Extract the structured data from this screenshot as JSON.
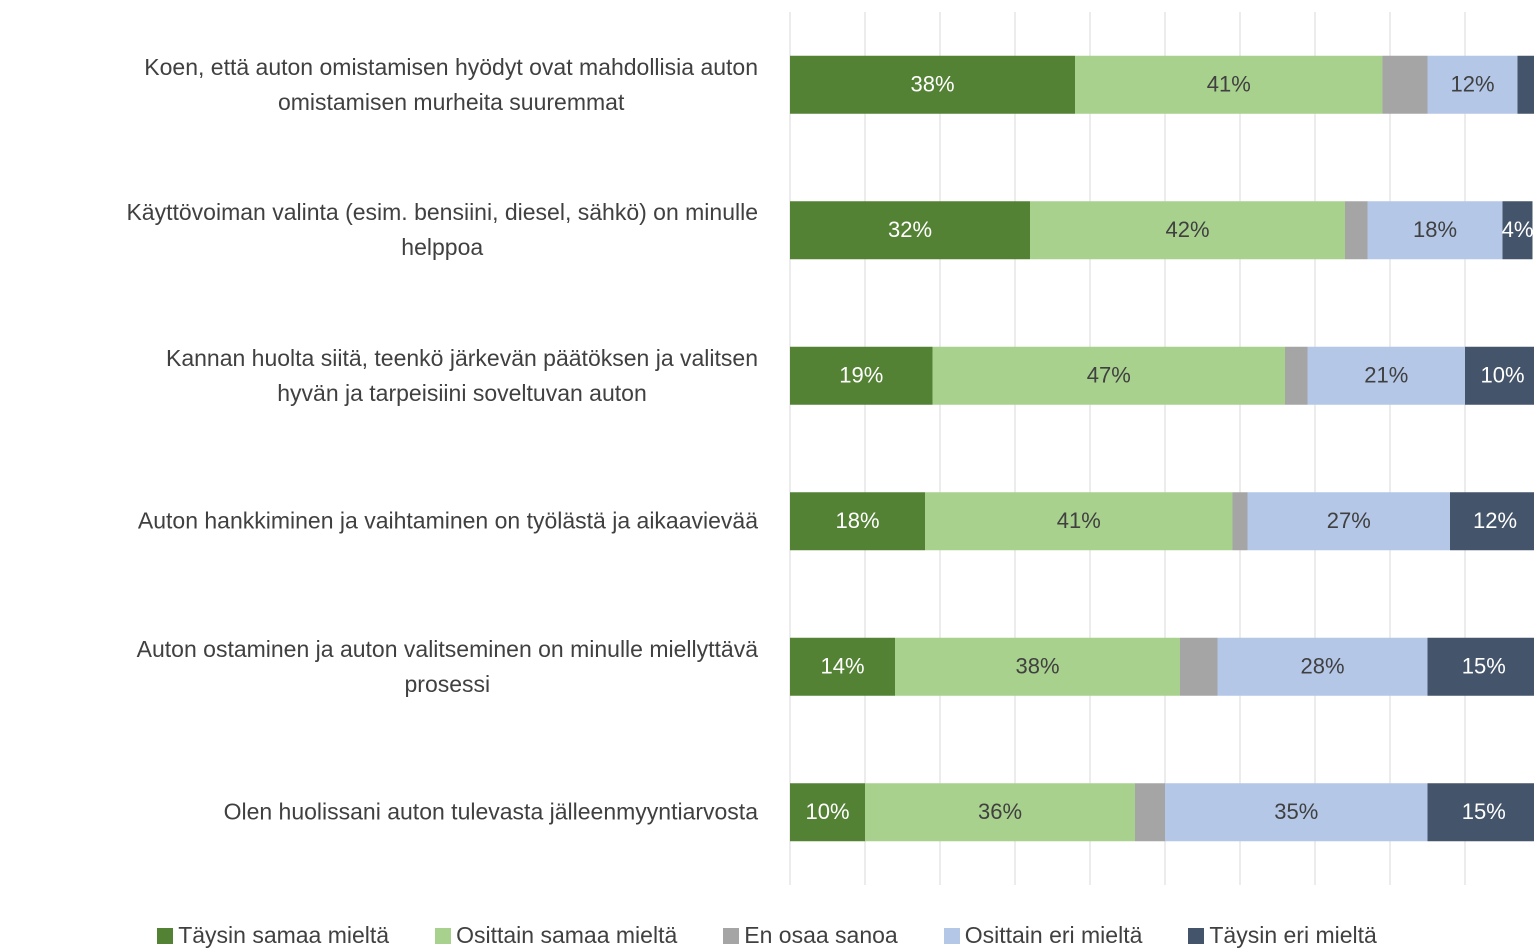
{
  "chart_data": {
    "type": "stacked-bar-horizontal",
    "categories": [
      "Koen, että auton omistamisen hyödyt ovat mahdollisia auton\nomistamisen murheita suuremmat",
      "Käyttövoiman valinta (esim. bensiini, diesel, sähkö) on minulle\nhelppoa",
      "Kannan huolta siitä, teenkö järkevän päätöksen ja valitsen\nhyvän ja tarpeisiini soveltuvan auton",
      "Auton hankkiminen ja vaihtaminen on työlästä ja aikaavievää",
      "Auton ostaminen ja auton valitseminen on minulle miellyttävä\nprosessi",
      "Olen huolissani auton tulevasta jälleenmyyntiarvosta"
    ],
    "series": [
      {
        "name": "Täysin samaa mieltä",
        "color": "#548235",
        "label_color": "#ffffff",
        "values": [
          38,
          32,
          19,
          18,
          14,
          10
        ],
        "value_labels": [
          "38%",
          "32%",
          "19%",
          "18%",
          "14%",
          "10%"
        ]
      },
      {
        "name": "Osittain samaa mieltä",
        "color": "#a9d18e",
        "label_color": "#404040",
        "values": [
          41,
          42,
          47,
          41,
          38,
          36
        ],
        "value_labels": [
          "41%",
          "42%",
          "47%",
          "41%",
          "38%",
          "36%"
        ]
      },
      {
        "name": "En osaa sanoa",
        "color": "#a5a5a5",
        "label_color": "#404040",
        "values": [
          6,
          3,
          3,
          2,
          5,
          4
        ],
        "value_labels": [
          null,
          null,
          null,
          null,
          null,
          null
        ]
      },
      {
        "name": "Osittain eri mieltä",
        "color": "#b4c7e7",
        "label_color": "#404040",
        "values": [
          12,
          18,
          21,
          27,
          28,
          35
        ],
        "value_labels": [
          "12%",
          "18%",
          "21%",
          "27%",
          "28%",
          "35%"
        ]
      },
      {
        "name": "Täysin eri mieltä",
        "color": "#44546a",
        "label_color": "#ffffff",
        "values": [
          3,
          4,
          10,
          12,
          15,
          15
        ],
        "value_labels": [
          null,
          "4%",
          "10%",
          "12%",
          "15%",
          "15%"
        ]
      }
    ],
    "xlim": [
      0,
      100
    ],
    "xticks": [
      0,
      10,
      20,
      30,
      40,
      50,
      60,
      70,
      80,
      90,
      100
    ],
    "grid": true,
    "legend": "bottom"
  }
}
